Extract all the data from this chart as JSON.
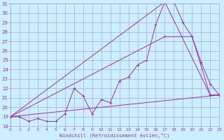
{
  "xlabel": "Windchill (Refroidissement éolien,°C)",
  "background_color": "#cceeff",
  "grid_color": "#aaaacc",
  "line_color": "#993399",
  "x_min": 0,
  "x_max": 23,
  "y_min": 18,
  "y_max": 31,
  "x_ticks": [
    0,
    1,
    2,
    3,
    4,
    5,
    6,
    7,
    8,
    9,
    10,
    11,
    12,
    13,
    14,
    15,
    16,
    17,
    18,
    19,
    20,
    21,
    22,
    23
  ],
  "y_ticks": [
    18,
    19,
    20,
    21,
    22,
    23,
    24,
    25,
    26,
    27,
    28,
    29,
    30,
    31
  ],
  "series": [
    {
      "x": [
        0,
        1,
        2,
        3,
        4,
        5,
        6,
        7,
        8,
        9,
        10,
        11,
        12,
        13,
        14,
        15,
        16,
        17,
        18,
        19,
        20,
        21,
        22,
        23
      ],
      "y": [
        19.0,
        19.0,
        18.5,
        18.8,
        18.5,
        18.5,
        19.3,
        22.0,
        21.2,
        19.3,
        20.8,
        20.5,
        22.8,
        23.2,
        24.5,
        25.0,
        28.8,
        31.2,
        31.2,
        29.0,
        27.5,
        24.8,
        22.5,
        21.3
      ]
    },
    {
      "x": [
        0,
        23
      ],
      "y": [
        19.0,
        21.3
      ]
    },
    {
      "x": [
        0,
        17,
        22,
        23
      ],
      "y": [
        19.0,
        31.2,
        21.3,
        21.3
      ]
    },
    {
      "x": [
        0,
        17,
        20,
        22,
        23
      ],
      "y": [
        19.0,
        27.5,
        27.5,
        21.3,
        21.3
      ]
    }
  ]
}
